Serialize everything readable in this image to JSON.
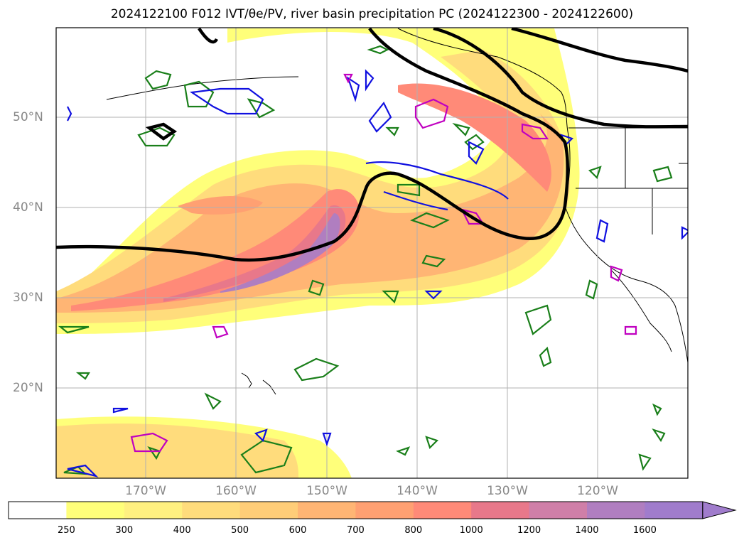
{
  "title": "2024122100 F012 IVT/θe/PV, river basin precipitation PC (2024122300 - 2024122600)",
  "lat_labels": [
    "50°N",
    "40°N",
    "30°N",
    "20°N"
  ],
  "lon_labels": [
    "170°W",
    "160°W",
    "150°W",
    "140°W",
    "130°W",
    "120°W"
  ],
  "colorbar": {
    "ticks": [
      "250",
      "300",
      "400",
      "500",
      "600",
      "700",
      "800",
      "1000",
      "1200",
      "1400",
      "1600"
    ],
    "colors": [
      "#ffffff",
      "#ffff7a",
      "#fff080",
      "#ffdc7c",
      "#ffcd78",
      "#ffb574",
      "#ffa072",
      "#ff8a78",
      "#e8788a",
      "#cf7fa8",
      "#b07ec0",
      "#a07ccc"
    ]
  }
}
